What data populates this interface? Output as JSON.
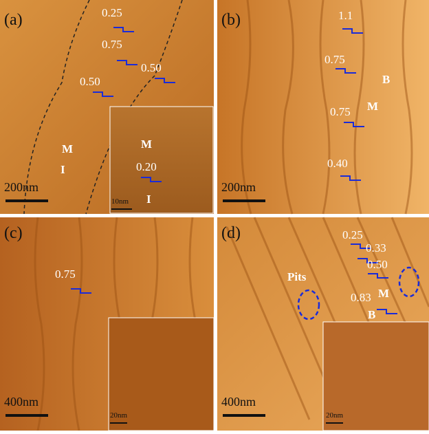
{
  "panels": [
    {
      "label": "(a)",
      "scale": "200nm",
      "annotations": [
        "0.25",
        "0.75",
        "0.50",
        "0.50",
        "M",
        "I"
      ],
      "inset": {
        "labels": [
          "M",
          "0.20",
          "I"
        ],
        "scale": "10nm"
      }
    },
    {
      "label": "(b)",
      "scale": "200nm",
      "annotations": [
        "1.1",
        "0.75",
        "B",
        "0.75",
        "M",
        "0.40"
      ]
    },
    {
      "label": "(c)",
      "scale": "400nm",
      "annotations": [
        "0.75"
      ],
      "inset": {
        "labels": [],
        "scale": "20nm"
      }
    },
    {
      "label": "(d)",
      "scale": "400nm",
      "annotations": [
        "0.25",
        "0.33",
        "0.50",
        "Pits",
        "0.83",
        "M",
        "B"
      ],
      "inset": {
        "labels": [],
        "scale": "20nm"
      }
    }
  ]
}
